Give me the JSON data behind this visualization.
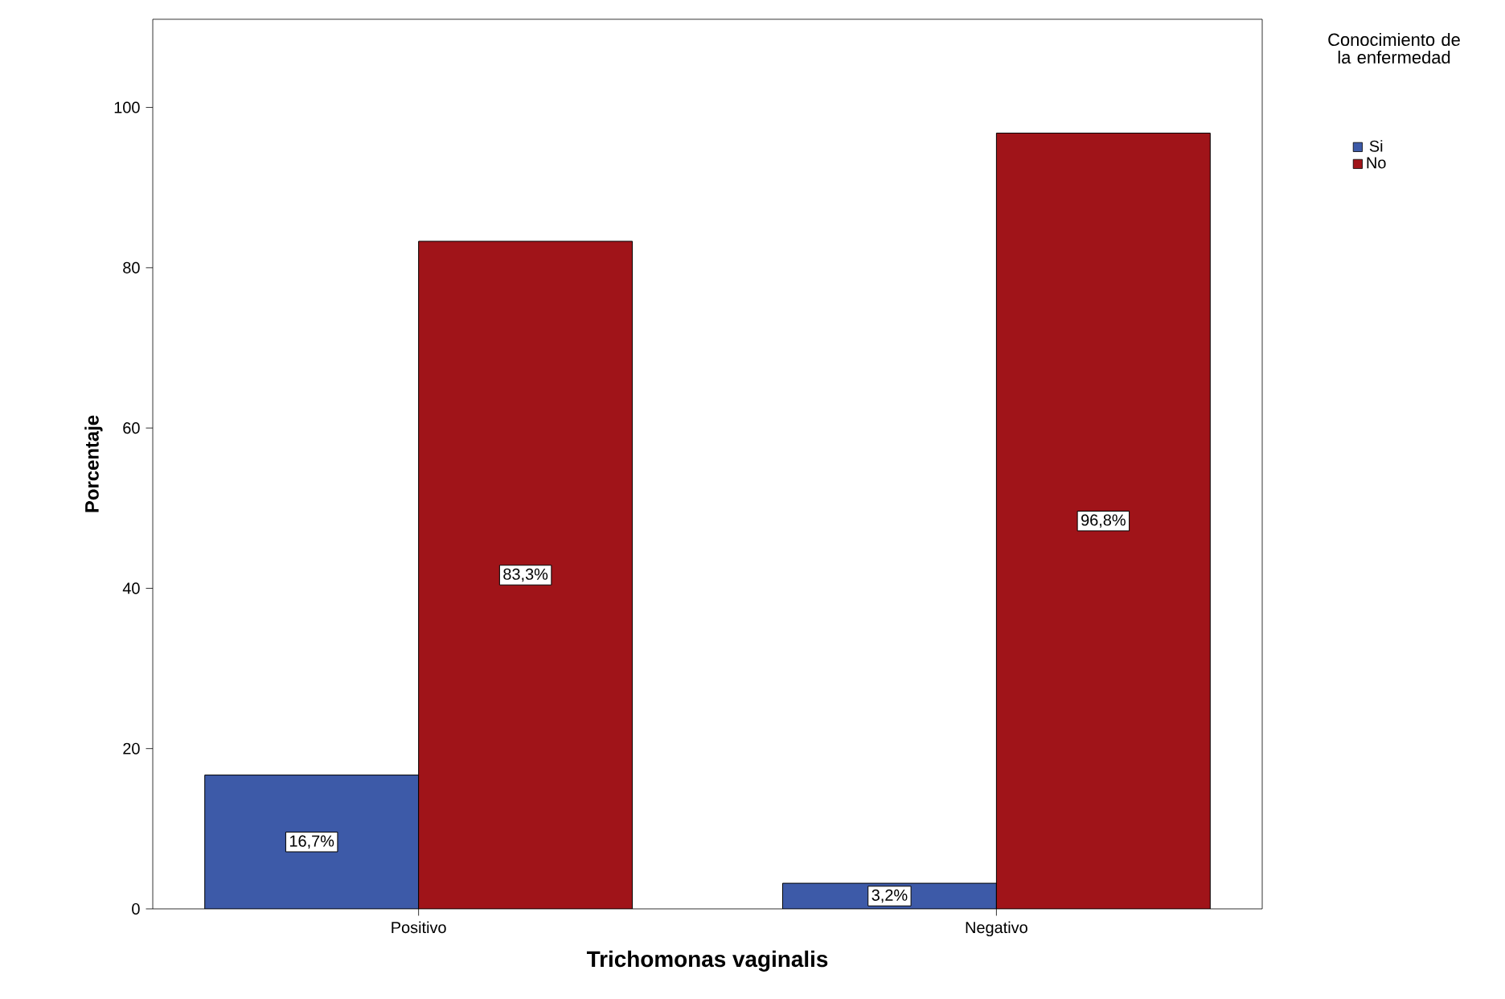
{
  "chart_data": {
    "type": "bar",
    "xlabel": "Trichomonas vaginalis",
    "ylabel": "Porcentaje",
    "legend_title": "Conocimiento de la enfermedad",
    "categories": [
      "Positivo",
      "Negativo"
    ],
    "series": [
      {
        "name": "Si",
        "color": "#3d5aa8",
        "values": [
          16.7,
          3.2
        ],
        "value_labels": [
          "16,7%",
          "3,2%"
        ]
      },
      {
        "name": "No",
        "color": "#a01419",
        "values": [
          83.3,
          96.8
        ],
        "value_labels": [
          "83,3%",
          "96,8%"
        ]
      }
    ],
    "ylim": [
      0,
      111
    ],
    "yticks": [
      0,
      20,
      40,
      60,
      80,
      100
    ],
    "grid": false,
    "legend": "top right"
  }
}
